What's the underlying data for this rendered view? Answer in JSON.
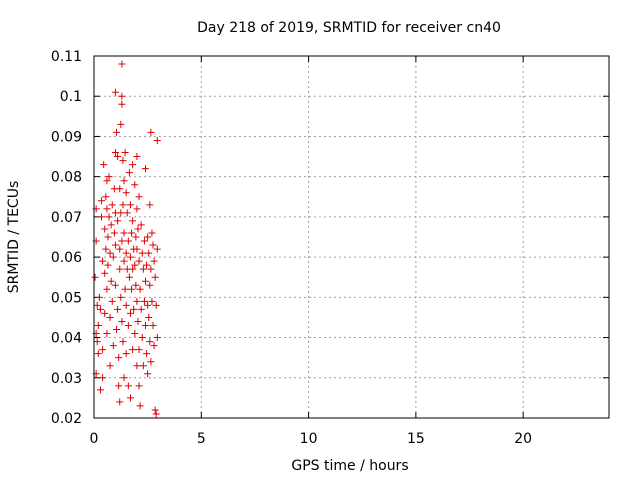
{
  "chart_data": {
    "type": "scatter",
    "title": "Day 218 of 2019, SRMTID for receiver cn40",
    "xlabel": "GPS time / hours",
    "ylabel": "SRMTID / TECUs",
    "xlim": [
      0,
      24
    ],
    "ylim": [
      0.02,
      0.11
    ],
    "xticks": [
      "0",
      "5",
      "10",
      "15",
      "20"
    ],
    "xtick_values": [
      0,
      5,
      10,
      15,
      20
    ],
    "yticks": [
      "0.02",
      "0.03",
      "0.04",
      "0.05",
      "0.06",
      "0.07",
      "0.08",
      "0.09",
      "0.1",
      "0.11"
    ],
    "ytick_values": [
      0.02,
      0.03,
      0.04,
      0.05,
      0.06,
      0.07,
      0.08,
      0.09,
      0.1,
      0.11
    ],
    "grid": true,
    "marker": "+",
    "color": "#e00000",
    "series": [
      {
        "points": [
          [
            0.05,
            0.055
          ],
          [
            0.1,
            0.072
          ],
          [
            0.1,
            0.064
          ],
          [
            0.1,
            0.041
          ],
          [
            0.1,
            0.031
          ],
          [
            0.15,
            0.048
          ],
          [
            0.15,
            0.039
          ],
          [
            0.2,
            0.043
          ],
          [
            0.2,
            0.036
          ],
          [
            0.25,
            0.05
          ],
          [
            0.3,
            0.027
          ],
          [
            0.3,
            0.047
          ],
          [
            0.35,
            0.07
          ],
          [
            0.35,
            0.074
          ],
          [
            0.4,
            0.059
          ],
          [
            0.4,
            0.037
          ],
          [
            0.4,
            0.03
          ],
          [
            0.45,
            0.083
          ],
          [
            0.5,
            0.067
          ],
          [
            0.5,
            0.056
          ],
          [
            0.5,
            0.046
          ],
          [
            0.55,
            0.075
          ],
          [
            0.55,
            0.062
          ],
          [
            0.6,
            0.079
          ],
          [
            0.6,
            0.072
          ],
          [
            0.6,
            0.052
          ],
          [
            0.6,
            0.041
          ],
          [
            0.65,
            0.065
          ],
          [
            0.65,
            0.058
          ],
          [
            0.7,
            0.08
          ],
          [
            0.7,
            0.07
          ],
          [
            0.75,
            0.061
          ],
          [
            0.75,
            0.045
          ],
          [
            0.75,
            0.033
          ],
          [
            0.8,
            0.068
          ],
          [
            0.8,
            0.054
          ],
          [
            0.85,
            0.073
          ],
          [
            0.85,
            0.049
          ],
          [
            0.9,
            0.06
          ],
          [
            0.9,
            0.038
          ],
          [
            0.95,
            0.077
          ],
          [
            0.95,
            0.066
          ],
          [
            1.0,
            0.101
          ],
          [
            1.0,
            0.086
          ],
          [
            1.0,
            0.071
          ],
          [
            1.0,
            0.063
          ],
          [
            1.0,
            0.053
          ],
          [
            1.05,
            0.091
          ],
          [
            1.05,
            0.042
          ],
          [
            1.1,
            0.085
          ],
          [
            1.1,
            0.069
          ],
          [
            1.1,
            0.047
          ],
          [
            1.15,
            0.035
          ],
          [
            1.15,
            0.028
          ],
          [
            1.2,
            0.077
          ],
          [
            1.2,
            0.062
          ],
          [
            1.2,
            0.057
          ],
          [
            1.2,
            0.024
          ],
          [
            1.25,
            0.093
          ],
          [
            1.25,
            0.071
          ],
          [
            1.25,
            0.05
          ],
          [
            1.3,
            0.108
          ],
          [
            1.3,
            0.1
          ],
          [
            1.3,
            0.098
          ],
          [
            1.3,
            0.064
          ],
          [
            1.3,
            0.044
          ],
          [
            1.35,
            0.084
          ],
          [
            1.35,
            0.073
          ],
          [
            1.35,
            0.039
          ],
          [
            1.4,
            0.079
          ],
          [
            1.4,
            0.066
          ],
          [
            1.4,
            0.059
          ],
          [
            1.4,
            0.03
          ],
          [
            1.45,
            0.086
          ],
          [
            1.45,
            0.052
          ],
          [
            1.5,
            0.076
          ],
          [
            1.5,
            0.061
          ],
          [
            1.5,
            0.048
          ],
          [
            1.5,
            0.036
          ],
          [
            1.55,
            0.071
          ],
          [
            1.55,
            0.057
          ],
          [
            1.6,
            0.064
          ],
          [
            1.6,
            0.043
          ],
          [
            1.6,
            0.028
          ],
          [
            1.65,
            0.081
          ],
          [
            1.65,
            0.055
          ],
          [
            1.7,
            0.073
          ],
          [
            1.7,
            0.06
          ],
          [
            1.7,
            0.046
          ],
          [
            1.7,
            0.025
          ],
          [
            1.75,
            0.066
          ],
          [
            1.75,
            0.052
          ],
          [
            1.8,
            0.083
          ],
          [
            1.8,
            0.069
          ],
          [
            1.8,
            0.057
          ],
          [
            1.8,
            0.037
          ],
          [
            1.85,
            0.062
          ],
          [
            1.85,
            0.047
          ],
          [
            1.9,
            0.078
          ],
          [
            1.9,
            0.058
          ],
          [
            1.9,
            0.041
          ],
          [
            1.95,
            0.065
          ],
          [
            1.95,
            0.053
          ],
          [
            2.0,
            0.085
          ],
          [
            2.0,
            0.072
          ],
          [
            2.0,
            0.062
          ],
          [
            2.0,
            0.049
          ],
          [
            2.0,
            0.033
          ],
          [
            2.05,
            0.067
          ],
          [
            2.05,
            0.044
          ],
          [
            2.1,
            0.075
          ],
          [
            2.1,
            0.059
          ],
          [
            2.1,
            0.037
          ],
          [
            2.1,
            0.028
          ],
          [
            2.15,
            0.052
          ],
          [
            2.15,
            0.023
          ],
          [
            2.2,
            0.068
          ],
          [
            2.2,
            0.047
          ],
          [
            2.25,
            0.061
          ],
          [
            2.25,
            0.04
          ],
          [
            2.3,
            0.057
          ],
          [
            2.3,
            0.033
          ],
          [
            2.35,
            0.064
          ],
          [
            2.35,
            0.049
          ],
          [
            2.4,
            0.082
          ],
          [
            2.4,
            0.054
          ],
          [
            2.4,
            0.043
          ],
          [
            2.45,
            0.058
          ],
          [
            2.45,
            0.036
          ],
          [
            2.5,
            0.065
          ],
          [
            2.5,
            0.048
          ],
          [
            2.5,
            0.031
          ],
          [
            2.55,
            0.061
          ],
          [
            2.55,
            0.045
          ],
          [
            2.6,
            0.073
          ],
          [
            2.6,
            0.053
          ],
          [
            2.6,
            0.039
          ],
          [
            2.65,
            0.091
          ],
          [
            2.65,
            0.057
          ],
          [
            2.65,
            0.034
          ],
          [
            2.7,
            0.066
          ],
          [
            2.7,
            0.049
          ],
          [
            2.75,
            0.063
          ],
          [
            2.75,
            0.043
          ],
          [
            2.8,
            0.059
          ],
          [
            2.8,
            0.038
          ],
          [
            2.85,
            0.055
          ],
          [
            2.85,
            0.022
          ],
          [
            2.9,
            0.048
          ],
          [
            2.9,
            0.021
          ],
          [
            2.95,
            0.089
          ],
          [
            2.95,
            0.062
          ],
          [
            2.95,
            0.04
          ]
        ]
      }
    ]
  }
}
